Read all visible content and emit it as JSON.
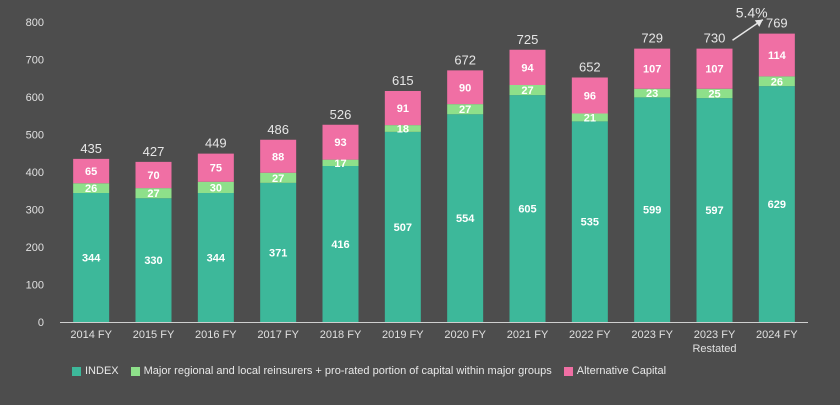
{
  "chart_data": {
    "type": "bar",
    "stacked": true,
    "categories": [
      "2014 FY",
      "2015 FY",
      "2016 FY",
      "2017 FY",
      "2018 FY",
      "2019 FY",
      "2020 FY",
      "2021 FY",
      "2022 FY",
      "2023 FY",
      "2023 FY\nRestated",
      "2024 FY"
    ],
    "series": [
      {
        "name": "INDEX",
        "color": "#3db89a",
        "values": [
          344,
          330,
          344,
          371,
          416,
          507,
          554,
          605,
          535,
          599,
          597,
          629
        ]
      },
      {
        "name": "Major regional and local reinsurers + pro-rated portion of capital within major groups",
        "color": "#8ee08a",
        "values": [
          26,
          27,
          30,
          27,
          17,
          18,
          27,
          27,
          21,
          23,
          25,
          26
        ]
      },
      {
        "name": "Alternative Capital",
        "color": "#f06fa4",
        "values": [
          65,
          70,
          75,
          88,
          93,
          91,
          90,
          94,
          96,
          107,
          107,
          114
        ]
      }
    ],
    "totals": [
      435,
      427,
      449,
      486,
      526,
      615,
      672,
      725,
      652,
      729,
      730,
      769
    ],
    "ylim": [
      0,
      800
    ],
    "yticks": [
      0,
      100,
      200,
      300,
      400,
      500,
      600,
      700,
      800
    ],
    "annotation": {
      "text": "5.4%",
      "from_index": 10,
      "to_index": 11
    },
    "legend_position": "bottom",
    "grid": false
  }
}
